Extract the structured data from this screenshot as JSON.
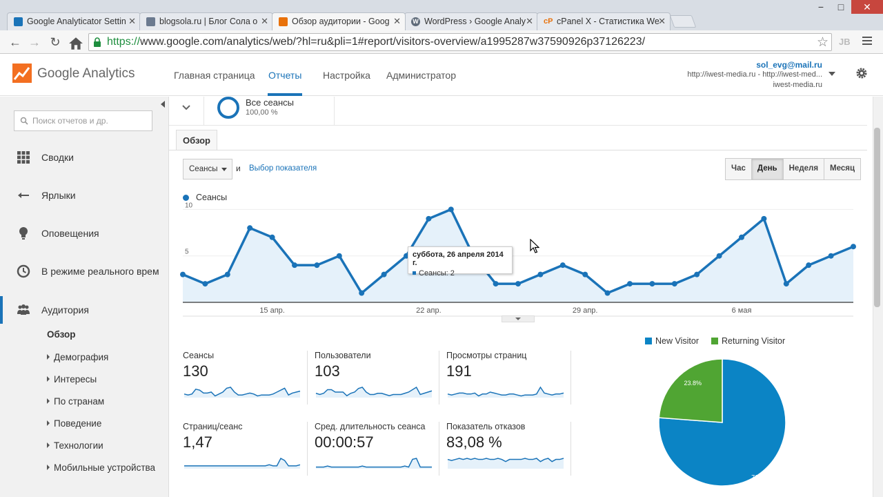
{
  "browser": {
    "tabs": [
      {
        "title": "Google Analyticator Settin",
        "favicon_color": "#1a73b8",
        "favicon": "doc-icon"
      },
      {
        "title": "blogsola.ru | Блог Сола о",
        "favicon_color": "#6b7a8f",
        "favicon": "doc-icon"
      },
      {
        "title": "Обзор аудитории - Goog",
        "favicon_color": "#e8710a",
        "favicon": "analytics-icon"
      },
      {
        "title": "WordPress › Google Analy",
        "favicon_color": "#5f6b7a",
        "favicon": "wordpress-icon"
      },
      {
        "title": "cPanel X - Статистика We",
        "favicon_color": "#e8710a",
        "favicon": "cpanel-icon"
      }
    ],
    "active_tab": 2,
    "url_scheme": "https://",
    "url_rest": "www.google.com/analytics/web/?hl=ru&pli=1#report/visitors-overview/a1995287w37590926p37126223/",
    "cpanel_glyph": "cP",
    "ext_label": "JB"
  },
  "ga": {
    "brand": "Google Analytics",
    "nav": [
      "Главная страница",
      "Отчеты",
      "Настройка",
      "Администратор"
    ],
    "active_nav": 1,
    "account": {
      "email": "sol_evg@mail.ru",
      "property": "http://iwest-media.ru - http://iwest-med...",
      "view": "iwest-media.ru"
    }
  },
  "sidebar": {
    "search_placeholder": "Поиск отчетов и др.",
    "items": [
      {
        "label": "Сводки",
        "icon": "grid-icon"
      },
      {
        "label": "Ярлыки",
        "icon": "shortcut-arrow-icon"
      },
      {
        "label": "Оповещения",
        "icon": "lightbulb-icon"
      },
      {
        "label": "В режиме реального времени",
        "icon": "clock-icon"
      },
      {
        "label": "Аудитория",
        "icon": "people-icon"
      }
    ],
    "sub_items": [
      "Обзор",
      "Демография",
      "Интересы",
      "По странам",
      "Поведение",
      "Технологии",
      "Мобильные устройства"
    ]
  },
  "segment": {
    "name": "Все сеансы",
    "percent": "100,00 %"
  },
  "report": {
    "tab": "Обзор",
    "metric": "Сеансы",
    "and": "и",
    "pick_metric": "Выбор показателя",
    "granularity": [
      "Час",
      "День",
      "Неделя",
      "Месяц"
    ],
    "active_granularity": 1,
    "tooltip": {
      "date": "суббота, 26 апреля 2014 г.",
      "value": "Сеансы: 2"
    }
  },
  "chart_data": {
    "type": "area",
    "series": [
      {
        "name": "Сеансы",
        "values": [
          3,
          2,
          3,
          8,
          7,
          4,
          4,
          5,
          1,
          3,
          5,
          9,
          10,
          5,
          2,
          2,
          3,
          4,
          3,
          1,
          2,
          2,
          2,
          3,
          5,
          7,
          9,
          2,
          4,
          5,
          6
        ]
      }
    ],
    "x_tick_labels": [
      "15 апр.",
      "22 апр.",
      "29 апр.",
      "6 мая"
    ],
    "x_tick_index": [
      4,
      11,
      18,
      25
    ],
    "y_ticks": [
      5,
      10
    ],
    "ylim": [
      0,
      10
    ],
    "color": "#1a73b8"
  },
  "scorecards": [
    {
      "name": "Сеансы",
      "value": "130",
      "spark": [
        3,
        2,
        3,
        8,
        7,
        4,
        4,
        5,
        1,
        3,
        5,
        9,
        10,
        5,
        2,
        2,
        3,
        4,
        3,
        1,
        2,
        2,
        2,
        3,
        5,
        7,
        9,
        2,
        4,
        5,
        6
      ]
    },
    {
      "name": "Пользователи",
      "value": "103",
      "spark": [
        3,
        2,
        3,
        6,
        6,
        4,
        4,
        4,
        1,
        3,
        4,
        7,
        8,
        4,
        2,
        2,
        3,
        3,
        2,
        1,
        2,
        2,
        2,
        3,
        4,
        6,
        8,
        2,
        3,
        4,
        5
      ]
    },
    {
      "name": "Просмотры страниц",
      "value": "191",
      "spark": [
        3,
        2,
        3,
        4,
        4,
        3,
        3,
        4,
        1,
        3,
        3,
        5,
        4,
        3,
        2,
        2,
        3,
        3,
        2,
        1,
        2,
        2,
        2,
        3,
        10,
        4,
        3,
        2,
        3,
        3,
        4
      ]
    },
    {
      "name": "Страниц/сеанс",
      "value": "1,47",
      "spark": [
        2,
        2,
        2,
        2,
        2,
        2,
        2,
        2,
        2,
        2,
        2,
        2,
        2,
        2,
        2,
        2,
        2,
        2,
        2,
        2,
        2,
        2,
        3,
        2,
        2,
        9,
        7,
        2,
        2,
        2,
        3
      ]
    },
    {
      "name": "Сред. длительность сеанса",
      "value": "00:00:57",
      "spark": [
        1,
        1,
        1,
        2,
        1,
        1,
        1,
        1,
        1,
        1,
        1,
        1,
        2,
        1,
        1,
        1,
        1,
        1,
        1,
        1,
        1,
        1,
        1,
        2,
        1,
        9,
        10,
        1,
        1,
        1,
        1
      ]
    },
    {
      "name": "Показатель отказов",
      "value": "83,08 %",
      "spark": [
        8,
        7,
        8,
        9,
        8,
        9,
        8,
        9,
        8,
        8,
        9,
        8,
        8,
        9,
        8,
        6,
        8,
        8,
        8,
        8,
        9,
        8,
        8,
        9,
        6,
        8,
        9,
        6,
        8,
        8,
        9
      ]
    }
  ],
  "pie": {
    "legend": [
      {
        "name": "New Visitor",
        "color": "#0b84c5"
      },
      {
        "name": "Returning Visitor",
        "color": "#50a533"
      }
    ],
    "slices": [
      {
        "name": "New Visitor",
        "value": 76.2,
        "label": "76.2%",
        "color": "#0b84c5"
      },
      {
        "name": "Returning Visitor",
        "value": 23.8,
        "label": "23.8%",
        "color": "#50a533"
      }
    ]
  }
}
